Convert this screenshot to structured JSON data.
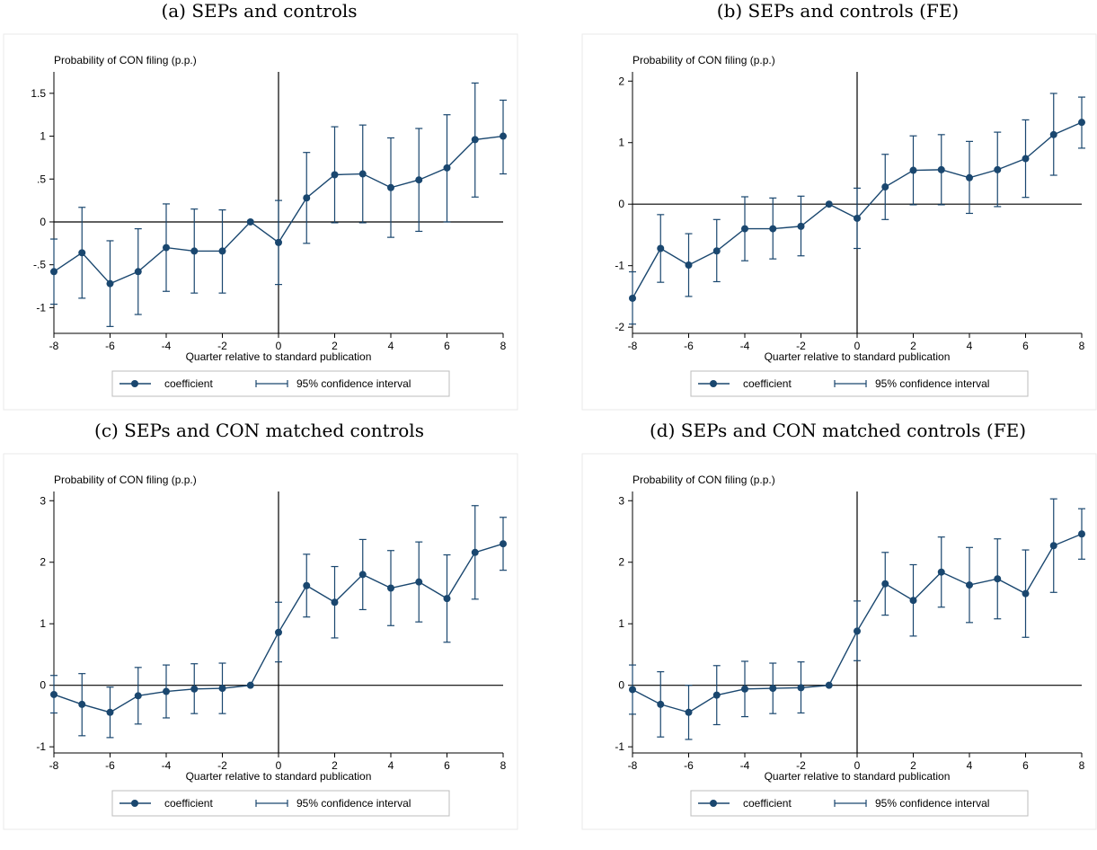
{
  "colors": {
    "series": "#1a476f",
    "axis": "#000000",
    "frame": "#eaeaea"
  },
  "chart_data": [
    {
      "type": "line",
      "title": "(a) SEPs and controls",
      "ylabel": "Probability of CON filing (p.p.)",
      "xlabel": "Quarter relative to standard publication",
      "x": [
        -8,
        -7,
        -6,
        -5,
        -4,
        -3,
        -2,
        -1,
        0,
        1,
        2,
        3,
        4,
        5,
        6,
        7,
        8
      ],
      "coef": [
        -0.58,
        -0.36,
        -0.72,
        -0.58,
        -0.3,
        -0.34,
        -0.34,
        0.0,
        -0.24,
        0.28,
        0.55,
        0.56,
        0.4,
        0.49,
        0.63,
        0.96,
        1.0
      ],
      "lower": [
        -0.96,
        -0.89,
        -1.22,
        -1.08,
        -0.81,
        -0.83,
        -0.83,
        0.0,
        -0.73,
        -0.25,
        -0.01,
        -0.01,
        -0.18,
        -0.11,
        0.0,
        0.29,
        0.56
      ],
      "upper": [
        -0.2,
        0.17,
        -0.22,
        -0.08,
        0.21,
        0.15,
        0.14,
        0.0,
        0.25,
        0.81,
        1.11,
        1.13,
        0.98,
        1.09,
        1.25,
        1.62,
        1.42
      ],
      "xlim": [
        -8,
        8
      ],
      "ylim": [
        -1.3,
        1.75
      ],
      "xticks": [
        -8,
        -6,
        -4,
        -2,
        0,
        2,
        4,
        6,
        8
      ],
      "xtick_labels": [
        "-8",
        "-6",
        "-4",
        "-2",
        "0",
        "2",
        "4",
        "6",
        "8"
      ],
      "yticks": [
        -1,
        -0.5,
        0,
        0.5,
        1,
        1.5
      ],
      "ytick_labels": [
        "-1",
        "-.5",
        "0",
        ".5",
        "1",
        "1.5"
      ],
      "legend": [
        "coefficient",
        "95% confidence interval"
      ],
      "legend_position": "bottom",
      "grid": false
    },
    {
      "type": "line",
      "title": "(b) SEPs and controls (FE)",
      "ylabel": "Probability of CON filing (p.p.)",
      "xlabel": "Quarter relative to standard publication",
      "x": [
        -8,
        -7,
        -6,
        -5,
        -4,
        -3,
        -2,
        -1,
        0,
        1,
        2,
        3,
        4,
        5,
        6,
        7,
        8
      ],
      "coef": [
        -1.53,
        -0.72,
        -0.99,
        -0.76,
        -0.4,
        -0.4,
        -0.36,
        0.0,
        -0.23,
        0.28,
        0.55,
        0.56,
        0.43,
        0.56,
        0.74,
        1.13,
        1.33
      ],
      "lower": [
        -1.95,
        -1.27,
        -1.5,
        -1.26,
        -0.92,
        -0.89,
        -0.84,
        0.0,
        -0.72,
        -0.25,
        -0.01,
        -0.01,
        -0.15,
        -0.04,
        0.11,
        0.47,
        0.91
      ],
      "upper": [
        -1.1,
        -0.17,
        -0.48,
        -0.25,
        0.12,
        0.1,
        0.13,
        0.0,
        0.26,
        0.81,
        1.11,
        1.13,
        1.02,
        1.17,
        1.37,
        1.8,
        1.74
      ],
      "xlim": [
        -8,
        8
      ],
      "ylim": [
        -2.1,
        2.15
      ],
      "xticks": [
        -8,
        -6,
        -4,
        -2,
        0,
        2,
        4,
        6,
        8
      ],
      "xtick_labels": [
        "-8",
        "-6",
        "-4",
        "-2",
        "0",
        "2",
        "4",
        "6",
        "8"
      ],
      "yticks": [
        -2,
        -1,
        0,
        1,
        2
      ],
      "ytick_labels": [
        "-2",
        "-1",
        "0",
        "1",
        "2"
      ],
      "legend": [
        "coefficient",
        "95% confidence interval"
      ],
      "legend_position": "bottom",
      "grid": false
    },
    {
      "type": "line",
      "title": "(c) SEPs and CON matched controls",
      "ylabel": "Probability of CON filing (p.p.)",
      "xlabel": "Quarter relative to standard publication",
      "x": [
        -8,
        -7,
        -6,
        -5,
        -4,
        -3,
        -2,
        -1,
        0,
        1,
        2,
        3,
        4,
        5,
        6,
        7,
        8
      ],
      "coef": [
        -0.15,
        -0.31,
        -0.44,
        -0.17,
        -0.1,
        -0.06,
        -0.05,
        0.0,
        0.86,
        1.62,
        1.35,
        1.8,
        1.58,
        1.68,
        1.41,
        2.16,
        2.3
      ],
      "lower": [
        -0.45,
        -0.82,
        -0.85,
        -0.63,
        -0.53,
        -0.46,
        -0.46,
        0.0,
        0.38,
        1.11,
        0.77,
        1.23,
        0.97,
        1.03,
        0.7,
        1.4,
        1.87
      ],
      "upper": [
        0.16,
        0.19,
        -0.03,
        0.29,
        0.33,
        0.35,
        0.36,
        0.0,
        1.35,
        2.13,
        1.93,
        2.37,
        2.19,
        2.33,
        2.12,
        2.92,
        2.73
      ],
      "xlim": [
        -8,
        8
      ],
      "ylim": [
        -1.1,
        3.15
      ],
      "xticks": [
        -8,
        -6,
        -4,
        -2,
        0,
        2,
        4,
        6,
        8
      ],
      "xtick_labels": [
        "-8",
        "-6",
        "-4",
        "-2",
        "0",
        "2",
        "4",
        "6",
        "8"
      ],
      "yticks": [
        -1,
        0,
        1,
        2,
        3
      ],
      "ytick_labels": [
        "-1",
        "0",
        "1",
        "2",
        "3"
      ],
      "legend": [
        "coefficient",
        "95% confidence interval"
      ],
      "legend_position": "bottom",
      "grid": false
    },
    {
      "type": "line",
      "title": "(d) SEPs and CON matched controls (FE)",
      "ylabel": "Probability of CON filing (p.p.)",
      "xlabel": "Quarter relative to standard publication",
      "x": [
        -8,
        -7,
        -6,
        -5,
        -4,
        -3,
        -2,
        -1,
        0,
        1,
        2,
        3,
        4,
        5,
        6,
        7,
        8
      ],
      "coef": [
        -0.07,
        -0.31,
        -0.44,
        -0.16,
        -0.06,
        -0.05,
        -0.04,
        0.0,
        0.88,
        1.65,
        1.38,
        1.84,
        1.63,
        1.73,
        1.49,
        2.27,
        2.46
      ],
      "lower": [
        -0.47,
        -0.84,
        -0.88,
        -0.64,
        -0.51,
        -0.46,
        -0.45,
        0.0,
        0.4,
        1.14,
        0.8,
        1.27,
        1.02,
        1.08,
        0.78,
        1.51,
        2.05
      ],
      "upper": [
        0.33,
        0.22,
        0.0,
        0.32,
        0.39,
        0.36,
        0.38,
        0.0,
        1.37,
        2.16,
        1.96,
        2.41,
        2.24,
        2.38,
        2.2,
        3.03,
        2.87
      ],
      "xlim": [
        -8,
        8
      ],
      "ylim": [
        -1.1,
        3.15
      ],
      "xticks": [
        -8,
        -6,
        -4,
        -2,
        0,
        2,
        4,
        6,
        8
      ],
      "xtick_labels": [
        "-8",
        "-6",
        "-4",
        "-2",
        "0",
        "2",
        "4",
        "6",
        "8"
      ],
      "yticks": [
        -1,
        0,
        1,
        2,
        3
      ],
      "ytick_labels": [
        "-1",
        "0",
        "1",
        "2",
        "3"
      ],
      "legend": [
        "coefficient",
        "95% confidence interval"
      ],
      "legend_position": "bottom",
      "grid": false
    }
  ]
}
